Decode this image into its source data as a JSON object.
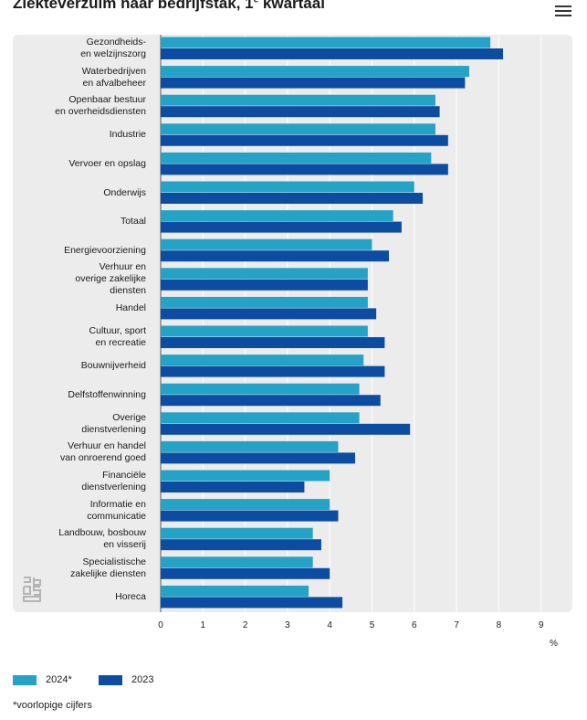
{
  "title": {
    "main": "Ziekteverzuim naar bedrijfstak, 1",
    "sup": "e",
    "suffix": " kwartaal"
  },
  "colors": {
    "series_2024": "#24a3c6",
    "series_2023": "#0c4da2",
    "panel": "#ececec"
  },
  "icons": {
    "menu": "hamburger-menu-icon",
    "logo": "cbs-logo"
  },
  "chart_data": {
    "type": "bar",
    "orientation": "horizontal",
    "title": "Ziekteverzuim naar bedrijfstak, 1e kwartaal",
    "xlabel": "%",
    "xlim": [
      0,
      9
    ],
    "x_ticks": [
      "0",
      "1",
      "2",
      "3",
      "4",
      "5",
      "6",
      "7",
      "8",
      "9"
    ],
    "grid": true,
    "legend_position": "bottom-left",
    "categories": [
      "Gezondheids-\nen welzijnszorg",
      "Waterbedrijven\nen afvalbeheer",
      "Openbaar bestuur\nen overheidsdiensten",
      "Industrie",
      "Vervoer en opslag",
      "Onderwijs",
      "Totaal",
      "Energievoorziening",
      "Verhuur en\noverige zakelijke\ndiensten",
      "Handel",
      "Cultuur, sport\nen recreatie",
      "Bouwnijverheid",
      "Delfstoffenwinning",
      "Overige\ndienstverlening",
      "Verhuur en handel\nvan onroerend goed",
      "Financiële\ndienstverlening",
      "Informatie en\ncommunicatie",
      "Landbouw, bosbouw\nen visserij",
      "Specialistische\nzakelijke diensten",
      "Horeca"
    ],
    "series": [
      {
        "name": "2024*",
        "values": [
          7.8,
          7.3,
          6.5,
          6.5,
          6.4,
          6.0,
          5.5,
          5.0,
          4.9,
          4.9,
          4.9,
          4.8,
          4.7,
          4.7,
          4.2,
          4.0,
          4.0,
          3.6,
          3.6,
          3.5
        ]
      },
      {
        "name": "2023",
        "values": [
          8.1,
          7.2,
          6.6,
          6.8,
          6.8,
          6.2,
          5.7,
          5.4,
          4.9,
          5.1,
          5.3,
          5.3,
          5.2,
          5.9,
          4.6,
          3.4,
          4.2,
          3.8,
          4.0,
          4.3
        ]
      }
    ]
  },
  "legend": {
    "items": [
      "2024*",
      "2023"
    ]
  },
  "footnote": "*voorlopige cijfers"
}
